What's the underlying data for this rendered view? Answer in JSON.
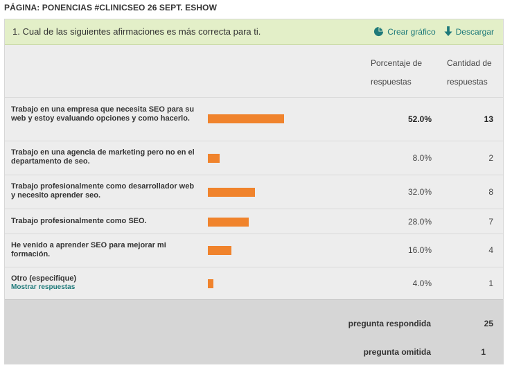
{
  "page": {
    "label": "PÁGINA: PONENCIAS #CLINICSEO 26 SEPT. ESHOW"
  },
  "question": {
    "title": "1. Cual de las siguientes afirmaciones es más correcta para ti.",
    "actions": [
      {
        "label": "Crear gráfico",
        "icon": "pie-chart-icon"
      },
      {
        "label": "Descargar",
        "icon": "download-arrow-icon"
      }
    ]
  },
  "columns": {
    "percentage": "Porcentaje de respuestas",
    "count": "Cantidad de respuestas"
  },
  "colors": {
    "bar": "#f0832c",
    "accent": "#1f7a7a",
    "header_bg": "#e3efc8"
  },
  "rows": [
    {
      "label": "Trabajo en una empresa que necesita SEO para su web y estoy evaluando opciones y como hacerlo.",
      "percent": 52.0,
      "percent_text": "52.0%",
      "count": "13",
      "bold": true
    },
    {
      "label": "Trabajo en una agencia de marketing pero no en el departamento de seo.",
      "percent": 8.0,
      "percent_text": "8.0%",
      "count": "2",
      "bold": false
    },
    {
      "label": "Trabajo profesionalmente como desarrollador web y necesito aprender seo.",
      "percent": 32.0,
      "percent_text": "32.0%",
      "count": "8",
      "bold": false
    },
    {
      "label": "Trabajo profesionalmente como SEO.",
      "percent": 28.0,
      "percent_text": "28.0%",
      "count": "7",
      "bold": false
    },
    {
      "label": "He venido a aprender SEO para mejorar mi formación.",
      "percent": 16.0,
      "percent_text": "16.0%",
      "count": "4",
      "bold": false
    },
    {
      "label": "Otro (especifique)",
      "link": "Mostrar respuestas",
      "percent": 4.0,
      "percent_text": "4.0%",
      "count": "1",
      "bold": false
    }
  ],
  "summary": {
    "answered_label": "pregunta respondida",
    "answered_value": "25",
    "skipped_label": "pregunta omitida",
    "skipped_value": "1"
  }
}
